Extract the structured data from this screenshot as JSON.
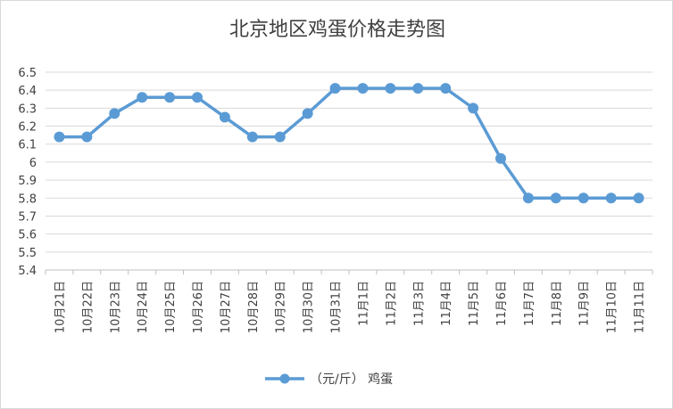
{
  "chart_data": {
    "type": "line",
    "title": "北京地区鸡蛋价格走势图",
    "categories": [
      "10月21日",
      "10月22日",
      "10月23日",
      "10月24日",
      "10月25日",
      "10月26日",
      "10月27日",
      "10月28日",
      "10月29日",
      "10月30日",
      "10月31日",
      "11月1日",
      "11月2日",
      "11月3日",
      "11月4日",
      "11月5日",
      "11月6日",
      "11月7日",
      "11月8日",
      "11月9日",
      "11月10日",
      "11月11日"
    ],
    "series": [
      {
        "name": "（元/斤） 鸡蛋",
        "values": [
          6.14,
          6.14,
          6.27,
          6.36,
          6.36,
          6.36,
          6.25,
          6.14,
          6.14,
          6.27,
          6.41,
          6.41,
          6.41,
          6.41,
          6.41,
          6.3,
          6.02,
          5.8,
          5.8,
          5.8,
          5.8,
          5.8
        ],
        "color": "#5b9bd5"
      }
    ],
    "ylim": [
      5.4,
      6.5
    ],
    "yticks": [
      "5.4",
      "5.5",
      "5.6",
      "5.7",
      "5.8",
      "5.9",
      "6",
      "6.1",
      "6.2",
      "6.3",
      "6.4",
      "6.5"
    ],
    "grid": true,
    "legend_position": "bottom",
    "xlabel": "",
    "ylabel": ""
  }
}
